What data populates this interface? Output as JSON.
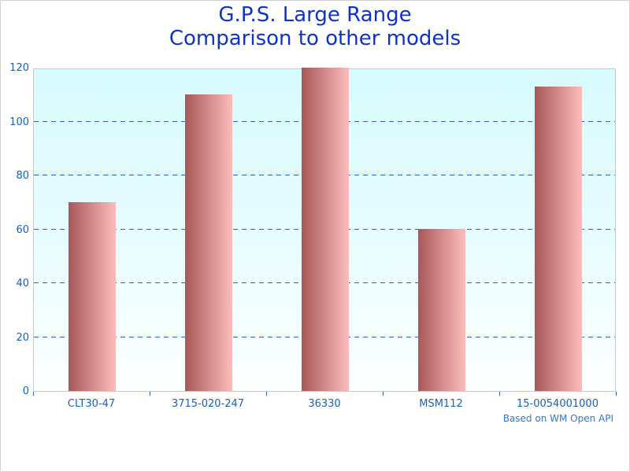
{
  "title": {
    "line1": "G.P.S. Large Range",
    "line2": "Comparison to other models",
    "color": "#0d33cc"
  },
  "footer": {
    "text": "Based on WM Open API",
    "color": "#3279d8"
  },
  "chart_data": {
    "type": "bar",
    "title": "G.P.S. Large Range — Comparison to other models",
    "categories": [
      "CLT30-47",
      "3715-020-247",
      "36330",
      "MSM112",
      "15-0054001000"
    ],
    "values": [
      70,
      110,
      120,
      60,
      113
    ],
    "xlabel": "",
    "ylabel": "",
    "ylim": [
      0,
      120
    ],
    "yticks": [
      0,
      20,
      40,
      60,
      80,
      100,
      120
    ],
    "gridlines": [
      20,
      40,
      60,
      80,
      100
    ],
    "grid_style": "dashed",
    "legend_position": "none",
    "annotation": "Based on WM Open API",
    "style": {
      "bar_gradient_left": "#a85757",
      "bar_gradient_right": "#fdbdbd",
      "plot_bg_top": "#d8fbfe",
      "plot_bg_bottom": "#fdffff",
      "grid_color": "#2f5fc6",
      "axis_label_color": "#1b5ec4",
      "frame_color": "#c9c9c9"
    }
  }
}
